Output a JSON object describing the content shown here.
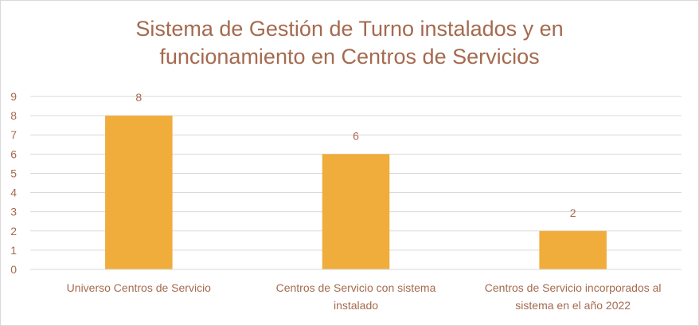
{
  "chart_data": {
    "type": "bar",
    "title_lines": [
      "Sistema de Gestión de Turno instalados y en",
      "funcionamiento en Centros de Servicios"
    ],
    "categories": [
      [
        "Universo Centros de Servicio"
      ],
      [
        "Centros de Servicio con sistema",
        "instalado"
      ],
      [
        "Centros de Servicio incorporados al",
        "sistema  en el año 2022"
      ]
    ],
    "values": [
      8,
      6,
      2
    ],
    "ylim": [
      0,
      9
    ],
    "yticks": [
      0,
      1,
      2,
      3,
      4,
      5,
      6,
      7,
      8,
      9
    ],
    "grid": true,
    "legend": "none",
    "colors": {
      "bar": "#f0ad3c",
      "grid": "#d9d9d9",
      "text": "#a56a4f"
    }
  }
}
